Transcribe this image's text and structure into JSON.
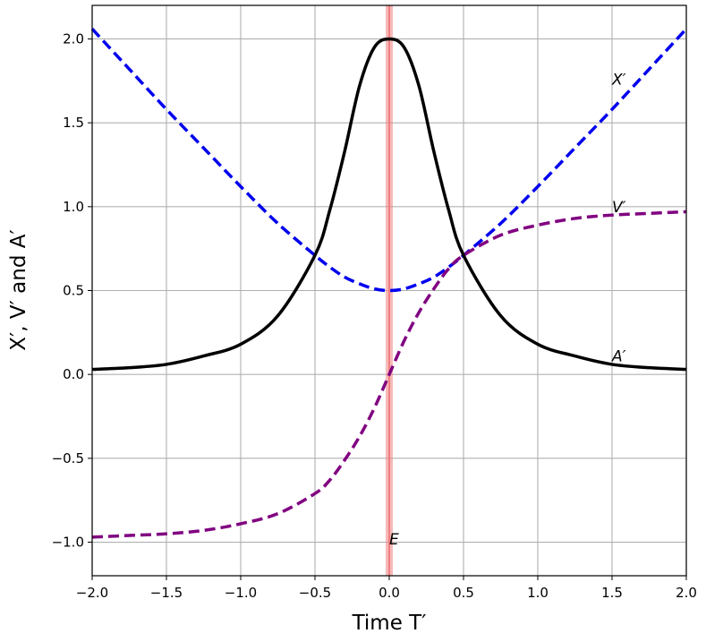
{
  "chart_data": {
    "type": "line",
    "xlabel": "Time T′",
    "ylabel": "X′,  V′ and A′",
    "xlim": [
      -2.0,
      2.0
    ],
    "ylim": [
      -1.2,
      2.2
    ],
    "grid": true,
    "x_ticks": [
      "−2.0",
      "−1.5",
      "−1.0",
      "−0.5",
      "0.0",
      "0.5",
      "1.0",
      "1.5",
      "2.0"
    ],
    "y_ticks": [
      "−1.0",
      "−0.5",
      "0.0",
      "0.5",
      "1.0",
      "1.5",
      "2.0"
    ],
    "series": [
      {
        "name": "X′",
        "color": "#0000ee",
        "style": "dashed",
        "x": [
          -2.0,
          -1.75,
          -1.5,
          -1.25,
          -1.0,
          -0.75,
          -0.5,
          -0.4,
          -0.3,
          -0.2,
          -0.1,
          0.0,
          0.1,
          0.2,
          0.3,
          0.4,
          0.5,
          0.75,
          1.0,
          1.25,
          1.5,
          1.75,
          2.0
        ],
        "y": [
          2.06,
          1.82,
          1.58,
          1.35,
          1.12,
          0.9,
          0.71,
          0.64,
          0.58,
          0.54,
          0.51,
          0.5,
          0.51,
          0.54,
          0.58,
          0.64,
          0.71,
          0.9,
          1.12,
          1.35,
          1.58,
          1.82,
          2.06
        ]
      },
      {
        "name": "V′",
        "color": "#800080",
        "style": "dashed",
        "x": [
          -2.0,
          -1.75,
          -1.5,
          -1.25,
          -1.0,
          -0.75,
          -0.5,
          -0.4,
          -0.3,
          -0.2,
          -0.1,
          0.0,
          0.1,
          0.2,
          0.3,
          0.4,
          0.5,
          0.75,
          1.0,
          1.25,
          1.5,
          1.75,
          2.0
        ],
        "y": [
          -0.97,
          -0.96,
          -0.95,
          -0.93,
          -0.89,
          -0.83,
          -0.71,
          -0.63,
          -0.51,
          -0.37,
          -0.2,
          0.0,
          0.2,
          0.37,
          0.51,
          0.63,
          0.71,
          0.83,
          0.89,
          0.93,
          0.95,
          0.96,
          0.97
        ]
      },
      {
        "name": "A′",
        "color": "#000000",
        "style": "solid",
        "x": [
          -2.0,
          -1.75,
          -1.5,
          -1.25,
          -1.0,
          -0.75,
          -0.5,
          -0.4,
          -0.3,
          -0.2,
          -0.1,
          0.0,
          0.1,
          0.2,
          0.3,
          0.4,
          0.5,
          0.75,
          1.0,
          1.25,
          1.5,
          1.75,
          2.0
        ],
        "y": [
          0.03,
          0.04,
          0.06,
          0.11,
          0.18,
          0.35,
          0.71,
          0.98,
          1.33,
          1.72,
          1.95,
          2.0,
          1.95,
          1.72,
          1.33,
          0.98,
          0.71,
          0.35,
          0.18,
          0.11,
          0.06,
          0.04,
          0.03
        ]
      }
    ],
    "annotations": [
      {
        "text": "X′",
        "x": 1.5,
        "y": 1.76
      },
      {
        "text": "V′",
        "x": 1.5,
        "y": 1.0
      },
      {
        "text": "A′",
        "x": 1.5,
        "y": 0.11
      },
      {
        "text": "E",
        "x": 0.0,
        "y": -0.98
      }
    ],
    "highlight_band": {
      "x": 0.0,
      "color": "#f08080"
    }
  }
}
